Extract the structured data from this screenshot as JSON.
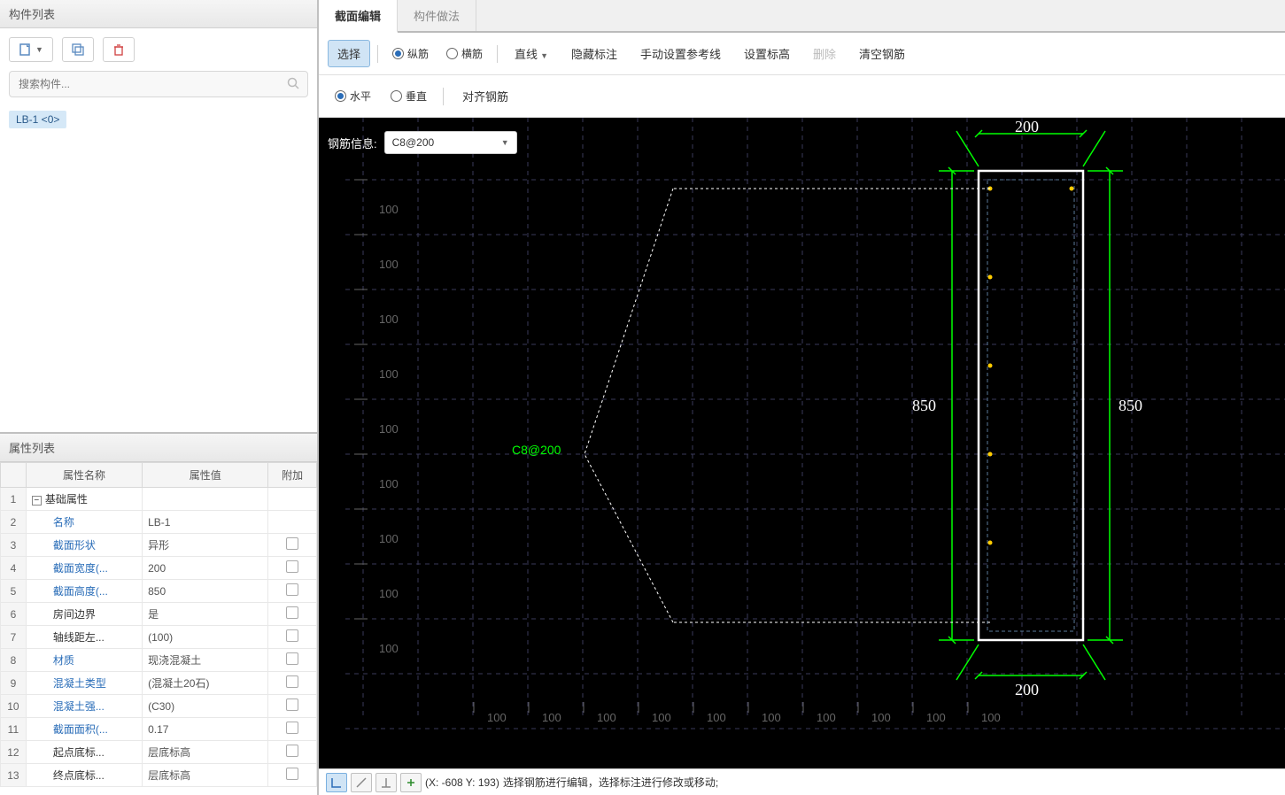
{
  "leftPanel": {
    "componentList": {
      "title": "构件列表",
      "searchPlaceholder": "搜索构件...",
      "treeItem": "LB-1 <0>"
    },
    "propertyList": {
      "title": "属性列表",
      "headers": {
        "name": "属性名称",
        "value": "属性值",
        "extra": "附加"
      },
      "rows": [
        {
          "num": "1",
          "name": "基础属性",
          "value": "",
          "isGroup": true,
          "link": false,
          "hasCheck": false
        },
        {
          "num": "2",
          "name": "名称",
          "value": "LB-1",
          "link": true,
          "hasCheck": false
        },
        {
          "num": "3",
          "name": "截面形状",
          "value": "异形",
          "link": true,
          "hasCheck": true
        },
        {
          "num": "4",
          "name": "截面宽度(...",
          "value": "200",
          "link": true,
          "hasCheck": true
        },
        {
          "num": "5",
          "name": "截面高度(...",
          "value": "850",
          "link": true,
          "hasCheck": true
        },
        {
          "num": "6",
          "name": "房间边界",
          "value": "是",
          "link": false,
          "hasCheck": true
        },
        {
          "num": "7",
          "name": "轴线距左...",
          "value": "(100)",
          "link": false,
          "hasCheck": true
        },
        {
          "num": "8",
          "name": "材质",
          "value": "现浇混凝土",
          "link": true,
          "hasCheck": true
        },
        {
          "num": "9",
          "name": "混凝土类型",
          "value": "(混凝土20石)",
          "link": true,
          "hasCheck": true
        },
        {
          "num": "10",
          "name": "混凝土强...",
          "value": "(C30)",
          "link": true,
          "hasCheck": true
        },
        {
          "num": "11",
          "name": "截面面积(...",
          "value": "0.17",
          "link": true,
          "hasCheck": true
        },
        {
          "num": "12",
          "name": "起点底标...",
          "value": "层底标高",
          "link": false,
          "hasCheck": true
        },
        {
          "num": "13",
          "name": "终点底标...",
          "value": "层底标高",
          "link": false,
          "hasCheck": true
        }
      ]
    }
  },
  "rightPanel": {
    "tabs": {
      "section": "截面编辑",
      "method": "构件做法"
    },
    "ribbon": {
      "select": "选择",
      "vertical": "纵筋",
      "horizontal": "横筋",
      "line": "直线",
      "hideAnnot": "隐藏标注",
      "manualRef": "手动设置参考线",
      "setElev": "设置标高",
      "delete": "删除",
      "clearRebar": "清空钢筋"
    },
    "subRibbon": {
      "horizontal": "水平",
      "vertical": "垂直",
      "alignRebar": "对齐钢筋"
    },
    "rebarInfo": {
      "label": "钢筋信息:",
      "value": "C8@200"
    },
    "canvas": {
      "dimTop": "200",
      "dimBottom": "200",
      "dimLeft": "850",
      "dimRight": "850",
      "rebarLabel": "C8@200",
      "gridLabels": [
        "100",
        "100",
        "100",
        "100",
        "100",
        "100",
        "100",
        "100",
        "100"
      ],
      "sectionWidth": 118,
      "sectionHeight": 530,
      "colors": {
        "bg": "#000000",
        "grid": "#3a3a5a",
        "section": "#ffffff",
        "dim": "#00ff00",
        "dimText": "#ffffff",
        "rebar": "#ffcc00"
      }
    },
    "statusBar": {
      "coords": "(X: -608 Y: 193)",
      "hint": "选择钢筋进行编辑，选择标注进行修改或移动;"
    }
  }
}
